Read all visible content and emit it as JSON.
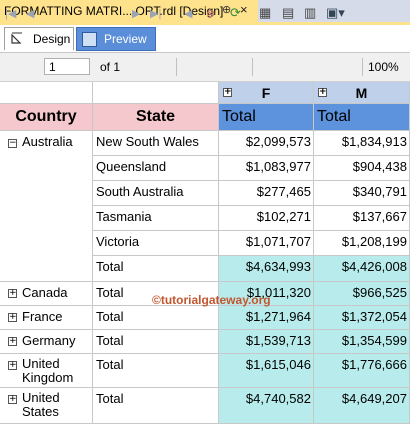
{
  "document_tab": {
    "title": "FORMATTING MATRI....ORT.rdl [Design]",
    "pin_glyph": "⊕",
    "close_glyph": "×"
  },
  "view_tabs": [
    {
      "label": "Design",
      "active": false
    },
    {
      "label": "Preview",
      "active": true
    }
  ],
  "toolbar": {
    "page_current": "1",
    "page_of": "of 1",
    "zoom": "100%"
  },
  "matrix": {
    "column_headers": {
      "country": "Country",
      "state": "State",
      "genders": [
        "F",
        "M"
      ],
      "total_label": "Total"
    },
    "groups": [
      {
        "country": "Australia",
        "rows": [
          {
            "state": "New South Wales",
            "f": "$2,099,573",
            "m": "$1,834,913"
          },
          {
            "state": "Queensland",
            "f": "$1,083,977",
            "m": "$904,438"
          },
          {
            "state": "South Australia",
            "f": "$277,465",
            "m": "$340,791"
          },
          {
            "state": "Tasmania",
            "f": "$102,271",
            "m": "$137,667"
          },
          {
            "state": "Victoria",
            "f": "$1,071,707",
            "m": "$1,208,199"
          },
          {
            "state": "Total",
            "f": "$4,634,993",
            "m": "$4,426,008"
          }
        ]
      },
      {
        "country": "Canada",
        "rows": [
          {
            "state": "Total",
            "f": "$1,011,320",
            "m": "$966,525"
          }
        ]
      },
      {
        "country": "France",
        "rows": [
          {
            "state": "Total",
            "f": "$1,271,964",
            "m": "$1,372,054"
          }
        ]
      },
      {
        "country": "Germany",
        "rows": [
          {
            "state": "Total",
            "f": "$1,539,713",
            "m": "$1,354,599"
          }
        ]
      },
      {
        "country": "United Kingdom",
        "rows": [
          {
            "state": "Total",
            "f": "$1,615,046",
            "m": "$1,776,666"
          }
        ]
      },
      {
        "country": "United States",
        "rows": [
          {
            "state": "Total",
            "f": "$4,740,582",
            "m": "$4,649,207"
          }
        ]
      }
    ]
  },
  "watermark": "©tutorialgateway.org",
  "colors": {
    "country_header_bg": "#f4c8cc",
    "gender_header_bg": "#bed0ea",
    "total_header_bg": "#5d92dd",
    "total_cell_bg": "#b8ecec"
  }
}
